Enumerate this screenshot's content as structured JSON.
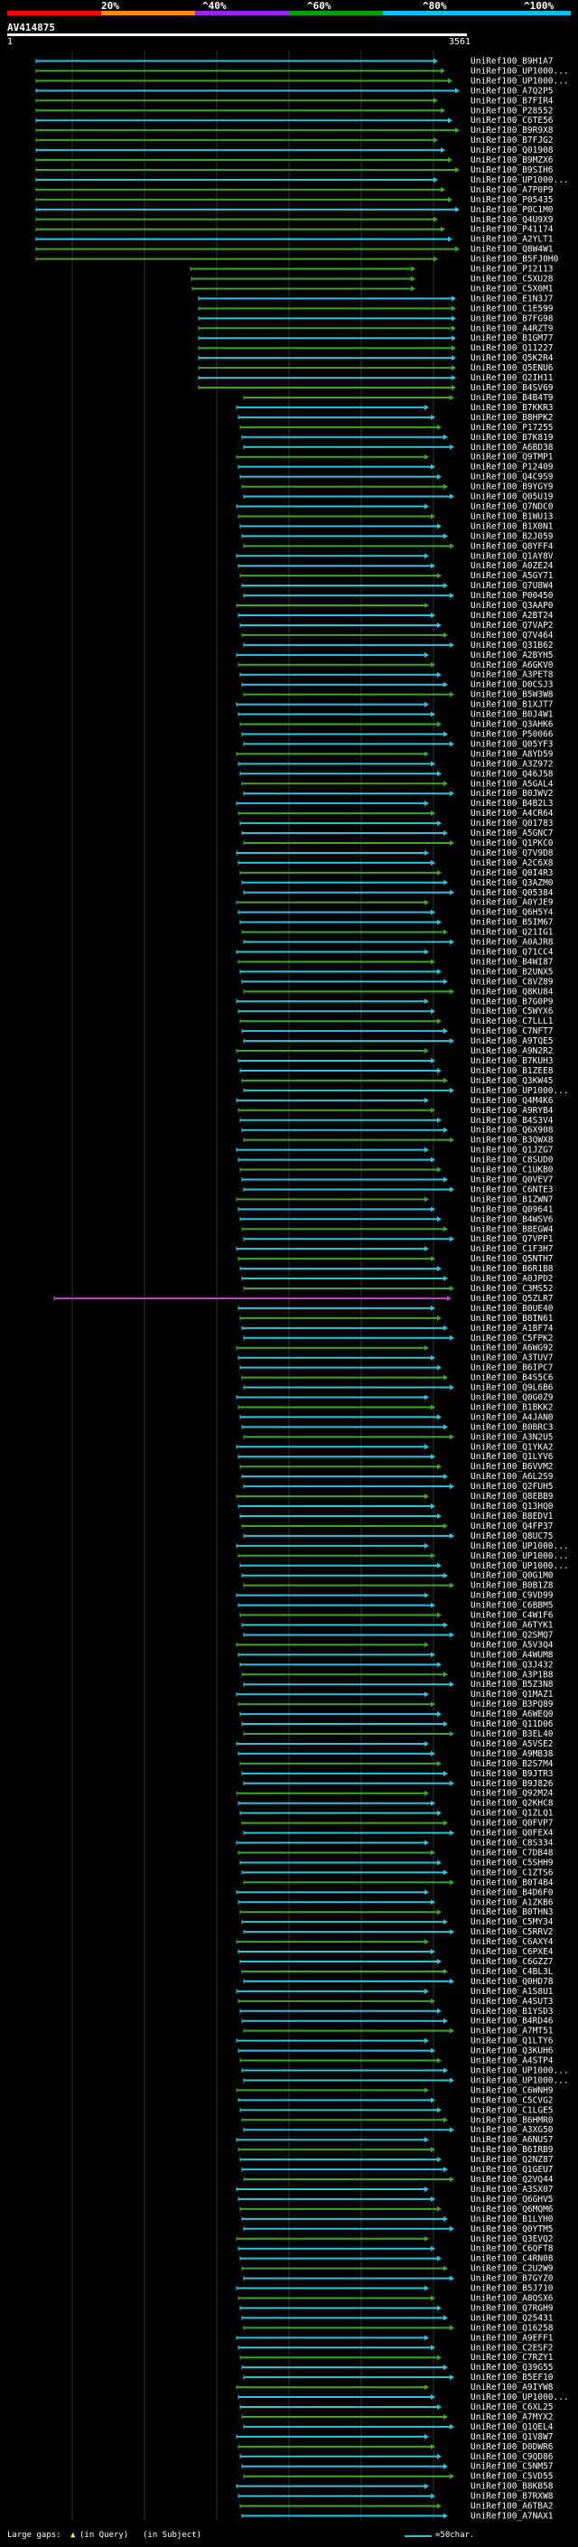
{
  "scale": {
    "labels": [
      "20%",
      "^40%",
      "^60%",
      "^80%",
      "^100%"
    ],
    "bands": [
      {
        "name": "0-20%",
        "color": "#ff0000"
      },
      {
        "name": "20-40%",
        "color": "#ff8c00"
      },
      {
        "name": "40-60%",
        "color": "#a020f0"
      },
      {
        "name": "60-80%",
        "color": "#00a000"
      },
      {
        "name": "80-100%",
        "color": "#00bfff"
      }
    ]
  },
  "query": {
    "name": "AV414875",
    "start": "1",
    "end": "3561"
  },
  "colors": {
    "cyan": "#27c6dc",
    "green": "#3da62a",
    "magenta": "#c23fbf",
    "grid": "#333333"
  },
  "hits_text": "UniRef100_B9H1A7|UniRef100_UP1000...|UniRef100_UP1000...|UniRef100_A7Q2P5|UniRef100_B7FIR4|UniRef100_P28552|UniRef100_C6TE56|UniRef100_B9R9X8|UniRef100_B7FJG2|UniRef100_Q01908|UniRef100_B9MZX6|UniRef100_B9SIH6|UniRef100_UP1000...|UniRef100_A7P0P9|UniRef100_P05435|UniRef100_P0C1M0|UniRef100_Q4U9X9|UniRef100_P41174|UniRef100_A2YLT1|UniRef100_Q8W4W1|UniRef100_B5FJ0H0|UniRef100_P12113|UniRef100_C5XU28|UniRef100_C5X0M1|UniRef100_E1N3J7|UniRef100_C1E599|UniRef100_B7FG98|UniRef100_A4RZT9|UniRef100_B1GM77|UniRef100_Q11227|UniRef100_Q5K2R4|UniRef100_Q5ENU6|UniRef100_Q2IH11|UniRef100_B4SV69|UniRef100_B4B4T9|UniRef100_B7KKR3|UniRef100_B8HPK2|UniRef100_P17255|UniRef100_B7K819|UniRef100_A6BD38|UniRef100_Q9TMP1|UniRef100_P12409|UniRef100_Q4C9S9|UniRef100_B9YGY9|UniRef100_Q05U19|UniRef100_Q7NDC0|UniRef100_B1WU13|UniRef100_B1X0N1|UniRef100_B2J059|UniRef100_Q8YFF4|UniRef100_Q1AY8V|UniRef100_A0ZE24|UniRef100_A5GY71|UniRef100_Q7U8W4|UniRef100_P00450|UniRef100_Q3AAP0|UniRef100_A2BT24|UniRef100_Q7VAP2|UniRef100_Q7V464|UniRef100_Q31B62|UniRef100_A2BYH5|UniRef100_A6GKV0|UniRef100_A3PET8|UniRef100_D0CSJ3|UniRef100_B5W3W8|UniRef100_B1XJT7|UniRef100_B0J4W1|UniRef100_Q3AHK6|UniRef100_P50066|UniRef100_Q05YF3|UniRef100_A8YD59|UniRef100_A3Z972|UniRef100_Q46J58|UniRef100_A5GAL4|UniRef100_B0JWV2|UniRef100_B4B2L3|UniRef100_A4CR64|UniRef100_Q01783|UniRef100_A5GNC7|UniRef100_Q1PKC0|UniRef100_Q7V9D8|UniRef100_A2C6X8|UniRef100_Q0I4R3|UniRef100_Q3AZM0|UniRef100_Q05384|UniRef100_A0YJE9|UniRef100_Q6H5Y4|UniRef100_B5IM67|UniRef100_Q21IG1|UniRef100_A0AJR8|UniRef100_Q71CC4|UniRef100_B4WI87|UniRef100_B2UNX5|UniRef100_C8VZ89|UniRef100_Q8KU84|UniRef100_B7G0P9|UniRef100_C5WYX6|UniRef100_C7LLL1|UniRef100_C7NFT7|UniRef100_A9TQE5|UniRef100_A9N2R2|UniRef100_B7KUH3|UniRef100_B1ZEE8|UniRef100_Q3KW45|UniRef100_UP1000...|UniRef100_Q4M4K6|UniRef100_A9RYB4|UniRef100_B4S3V4|UniRef100_Q6X908|UniRef100_B3QWX8|UniRef100_Q1JZG7|UniRef100_C8SUD0|UniRef100_C1UKB0|UniRef100_Q0VEV7|UniRef100_C6NTE3|UniRef100_B1ZWN7|UniRef100_Q09641|UniRef100_B4WSV6|UniRef100_B8EGW4|UniRef100_Q7VPP1|UniRef100_C1F3H7|UniRef100_Q5NTH7|UniRef100_B6R1B8|UniRef100_A0JPD2|UniRef100_C3MS52|UniRef100_Q5ZLR7|UniRef100_B0UE40|UniRef100_B8IN61|UniRef100_A1BF74|UniRef100_C5FPK2|UniRef100_A6WG92|UniRef100_A3TUV7|UniRef100_B6IPC7|UniRef100_B4S5C6|UniRef100_Q9L6B6|UniRef100_Q0G0Z9|UniRef100_B1BKK2|UniRef100_A4JAN0|UniRef100_B0BRC3|UniRef100_A3N2U5|UniRef100_Q1YKA2|UniRef100_Q1LYV6|UniRef100_B6VVM2|UniRef100_A6L2S9|UniRef100_Q2FUH5|UniRef100_Q8EBB9|UniRef100_Q13HQ0|UniRef100_B8EDV1|UniRef100_Q4FP37|UniRef100_Q8UC75|UniRef100_UP1000...|UniRef100_UP1000...|UniRef100_UP1000...|UniRef100_Q0G1M0|UniRef100_B0B1Z8|UniRef100_C9VD99|UniRef100_C6BBM5|UniRef100_C4W1F6|UniRef100_A6TYK1|UniRef100_Q2SMQ7|UniRef100_A5V3Q4|UniRef100_A4WUM8|UniRef100_Q3J432|UniRef100_A3P1B8|UniRef100_B5Z3N8|UniRef100_Q1MAZ1|UniRef100_B3PQ89|UniRef100_A6WEQ0|UniRef100_Q11D06|UniRef100_B3EL40|UniRef100_A5VSE2|UniRef100_A9MB38|UniRef100_B2S7M4|UniRef100_B9JTR3|UniRef100_B9J826|UniRef100_Q92M24|UniRef100_Q2KHC8|UniRef100_Q1ZLQ1|UniRef100_Q0FVP7|UniRef100_Q0FEX4|UniRef100_C8S334|UniRef100_C7DB48|UniRef100_C5SHH9|UniRef100_C1ZTS6|UniRef100_B0T4B4|UniRef100_B4D6F0|UniRef100_A1ZKB6|UniRef100_B0THN3|UniRef100_C5MY34|UniRef100_C5RRV2|UniRef100_C6AXY4|UniRef100_C6PXE4|UniRef100_C6GZZ7|UniRef100_C4BL3L|UniRef100_Q0HD78|UniRef100_A1S8U1|UniRef100_A4SUT3|UniRef100_B1YSD3|UniRef100_B4RD46|UniRef100_A7MT51|UniRef100_Q1LTY6|UniRef100_Q3KUH6|UniRef100_A4STP4|UniRef100_UP1000...|UniRef100_UP1000...|UniRef100_C6WNH9|UniRef100_C5CVG2|UniRef100_C1LGE5|UniRef100_B6HMR0|UniRef100_A3XG50|UniRef100_A6NUS7|UniRef100_B6IRB9|UniRef100_Q2NZ87|UniRef100_Q1GEU7|UniRef100_Q2VQ44|UniRef100_A3SX07|UniRef100_Q6GHV5|UniRef100_Q6MQM6|UniRef100_B1LYH0|UniRef100_Q0YTM5|UniRef100_Q3EVQ2|UniRef100_C6QFT8|UniRef100_C4RN08|UniRef100_C2U2W9|UniRef100_B7GYZ0|UniRef100_B5J710|UniRef100_A8QSX6|UniRef100_Q7RGH9|UniRef100_Q25431|UniRef100_Q16258|UniRef100_A9EFF1|UniRef100_C2ESF2|UniRef100_C7RZY1|UniRef100_Q39G55|UniRef100_B5EF10|UniRef100_A9IYW8|UniRef100_UP1000...|UniRef100_C6XL25|UniRef100_A7MYX2|UniRef100_Q1QEL4|UniRef100_Q1V8W7|UniRef100_D0DWR6|UniRef100_C9QD86|UniRef100_C5NM57|UniRef100_C5VD55|UniRef100_B8KB58|UniRef100_B7RXW8|UniRef100_A6TBA2|UniRef100_A7NAX1",
  "legend": {
    "large_gaps": "Large gaps:",
    "query_gap": "(in Query)",
    "subject_gap": "(in Subject)",
    "char_scale": "=50char."
  }
}
